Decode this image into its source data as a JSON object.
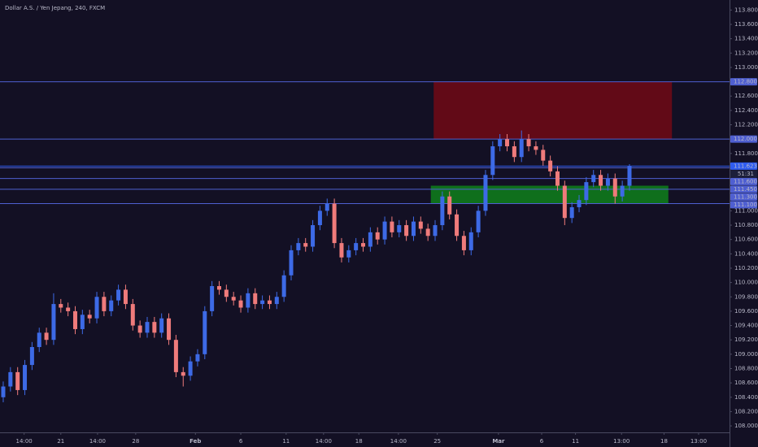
{
  "chart_data": {
    "type": "candlestick",
    "title": "Dollar A.S. / Yen Jepang, 240, FXCM",
    "up_color": "#3d6ae6",
    "down_color": "#ef7b7b",
    "level_color": "#4f5fd1",
    "current_color": "#2f5cf0",
    "open": [
      108.4,
      108.55,
      108.75,
      108.5,
      108.85,
      109.1,
      109.3,
      109.2,
      109.7,
      109.65,
      109.6,
      109.35,
      109.55,
      109.5,
      109.8,
      109.6,
      109.75,
      109.9,
      109.7,
      109.4,
      109.3,
      109.45,
      109.3,
      109.5,
      109.2,
      108.75,
      108.7,
      108.9,
      109.0,
      109.6,
      109.95,
      109.9,
      109.8,
      109.75,
      109.65,
      109.85,
      109.7,
      109.75,
      109.7,
      109.8,
      110.1,
      110.45,
      110.55,
      110.5,
      110.8,
      111.0,
      111.1,
      110.55,
      110.35,
      110.45,
      110.55,
      110.5,
      110.7,
      110.6,
      110.85,
      110.7,
      110.8,
      110.65,
      110.85,
      110.75,
      110.65,
      110.8,
      111.2,
      110.95,
      110.65,
      110.45,
      110.7,
      111.0,
      111.5,
      111.9,
      112.0,
      111.9,
      111.75,
      112.0,
      111.9,
      111.85,
      111.7,
      111.55,
      111.35,
      110.9,
      111.05,
      111.15,
      111.4,
      111.5,
      111.35,
      111.45,
      111.2,
      111.35
    ],
    "high": [
      108.62,
      108.82,
      108.82,
      108.92,
      109.17,
      109.37,
      109.37,
      109.85,
      109.77,
      109.72,
      109.67,
      109.62,
      109.62,
      109.87,
      109.87,
      109.82,
      109.97,
      109.97,
      109.77,
      109.47,
      109.52,
      109.52,
      109.57,
      109.57,
      109.27,
      108.82,
      108.97,
      109.07,
      109.67,
      110.02,
      110.02,
      109.97,
      109.87,
      109.82,
      109.92,
      109.92,
      109.82,
      109.82,
      109.87,
      110.17,
      110.52,
      110.62,
      110.62,
      110.87,
      111.07,
      111.17,
      111.17,
      110.62,
      110.52,
      110.62,
      110.62,
      110.77,
      110.77,
      110.92,
      110.92,
      110.87,
      110.87,
      110.92,
      110.92,
      110.82,
      110.87,
      111.27,
      111.27,
      111.02,
      110.72,
      110.77,
      111.07,
      111.57,
      111.97,
      112.07,
      112.07,
      111.97,
      112.12,
      112.07,
      111.97,
      111.92,
      111.77,
      111.62,
      111.42,
      111.12,
      111.22,
      111.47,
      111.57,
      111.57,
      111.52,
      111.52,
      111.42,
      111.65
    ],
    "low": [
      108.33,
      108.48,
      108.43,
      108.43,
      108.78,
      109.03,
      109.13,
      109.13,
      109.58,
      109.53,
      109.28,
      109.28,
      109.43,
      109.43,
      109.53,
      109.53,
      109.68,
      109.63,
      109.33,
      109.23,
      109.23,
      109.23,
      109.23,
      109.13,
      108.68,
      108.55,
      108.63,
      108.83,
      108.93,
      109.53,
      109.83,
      109.73,
      109.68,
      109.58,
      109.58,
      109.63,
      109.63,
      109.63,
      109.63,
      109.73,
      110.03,
      110.38,
      110.43,
      110.43,
      110.73,
      110.93,
      110.48,
      110.28,
      110.28,
      110.38,
      110.43,
      110.43,
      110.53,
      110.53,
      110.63,
      110.63,
      110.58,
      110.58,
      110.68,
      110.58,
      110.58,
      110.73,
      110.88,
      110.58,
      110.38,
      110.38,
      110.63,
      110.93,
      111.43,
      111.83,
      111.83,
      111.68,
      111.68,
      111.83,
      111.78,
      111.63,
      111.48,
      111.28,
      110.8,
      110.83,
      110.98,
      111.08,
      111.33,
      111.28,
      111.28,
      111.1,
      111.13,
      111.28
    ],
    "close": [
      108.55,
      108.75,
      108.5,
      108.85,
      109.1,
      109.3,
      109.2,
      109.7,
      109.65,
      109.6,
      109.35,
      109.55,
      109.5,
      109.8,
      109.6,
      109.75,
      109.9,
      109.7,
      109.4,
      109.3,
      109.45,
      109.3,
      109.5,
      109.2,
      108.75,
      108.7,
      108.9,
      109.0,
      109.6,
      109.95,
      109.9,
      109.8,
      109.75,
      109.65,
      109.85,
      109.7,
      109.75,
      109.7,
      109.8,
      110.1,
      110.45,
      110.55,
      110.5,
      110.8,
      111.0,
      111.1,
      110.55,
      110.35,
      110.45,
      110.55,
      110.5,
      110.7,
      110.6,
      110.85,
      110.7,
      110.8,
      110.65,
      110.85,
      110.75,
      110.65,
      110.8,
      111.2,
      110.95,
      110.65,
      110.45,
      110.7,
      111.0,
      111.5,
      111.9,
      112.0,
      111.9,
      111.75,
      112.0,
      111.9,
      111.85,
      111.7,
      111.55,
      111.35,
      110.9,
      111.05,
      111.15,
      111.4,
      111.5,
      111.35,
      111.45,
      111.2,
      111.35,
      111.62
    ],
    "xlim": [
      -0.45,
      100.9
    ],
    "ylim": [
      107.91,
      113.94
    ],
    "xticks": [
      {
        "value": 2.9,
        "label": "14:00"
      },
      {
        "value": 8.0,
        "label": "21"
      },
      {
        "value": 13.1,
        "label": "14:00"
      },
      {
        "value": 18.4,
        "label": "28"
      },
      {
        "value": 26.7,
        "label": "Feb"
      },
      {
        "value": 33,
        "label": "6"
      },
      {
        "value": 39.3,
        "label": "11"
      },
      {
        "value": 44.5,
        "label": "14:00"
      },
      {
        "value": 49.4,
        "label": "18"
      },
      {
        "value": 54.9,
        "label": "14:00"
      },
      {
        "value": 60.3,
        "label": "25"
      },
      {
        "value": 68.8,
        "label": "Mar"
      },
      {
        "value": 74.8,
        "label": "6"
      },
      {
        "value": 79.5,
        "label": "11"
      },
      {
        "value": 85.9,
        "label": "13:00"
      },
      {
        "value": 91.8,
        "label": "18"
      },
      {
        "value": 96.6,
        "label": "13:00"
      }
    ],
    "yticks": [
      {
        "value": 113.8,
        "label": "113.800"
      },
      {
        "value": 113.6,
        "label": "113.600"
      },
      {
        "value": 113.4,
        "label": "113.400"
      },
      {
        "value": 113.2,
        "label": "113.200"
      },
      {
        "value": 113.0,
        "label": "113.000"
      },
      {
        "value": 112.6,
        "label": "112.600"
      },
      {
        "value": 112.4,
        "label": "112.400"
      },
      {
        "value": 112.2,
        "label": "112.200"
      },
      {
        "value": 111.8,
        "label": "111.800"
      },
      {
        "value": 111.0,
        "label": "111.000"
      },
      {
        "value": 110.8,
        "label": "110.800"
      },
      {
        "value": 110.6,
        "label": "110.600"
      },
      {
        "value": 110.4,
        "label": "110.400"
      },
      {
        "value": 110.2,
        "label": "110.200"
      },
      {
        "value": 110.0,
        "label": "110.000"
      },
      {
        "value": 109.8,
        "label": "109.800"
      },
      {
        "value": 109.6,
        "label": "109.600"
      },
      {
        "value": 109.4,
        "label": "109.400"
      },
      {
        "value": 109.2,
        "label": "109.200"
      },
      {
        "value": 109.0,
        "label": "109.000"
      },
      {
        "value": 108.8,
        "label": "108.800"
      },
      {
        "value": 108.6,
        "label": "108.600"
      },
      {
        "value": 108.4,
        "label": "108.400"
      },
      {
        "value": 108.2,
        "label": "108.200"
      },
      {
        "value": 108.0,
        "label": "108.000"
      }
    ],
    "zones": [
      {
        "from": 112.0,
        "to": 112.8,
        "x_from": 59.8,
        "x_to": 92.9,
        "color": "#6b0a16"
      },
      {
        "from": 111.1,
        "to": 111.35,
        "x_from": 59.4,
        "x_to": 92.4,
        "color": "#0f7a1c"
      }
    ],
    "levels": [
      {
        "value": 112.8,
        "label": "112.800"
      },
      {
        "value": 112.0,
        "label": "112.000"
      },
      {
        "value": 111.623,
        "label": "111.623",
        "current": true
      },
      {
        "value": 111.6,
        "label": "111.600"
      },
      {
        "value": 111.45,
        "label": "111.450"
      },
      {
        "value": 111.3,
        "label": "111.300"
      },
      {
        "value": 111.1,
        "label": "111.100"
      }
    ],
    "countdown": "51:31"
  }
}
